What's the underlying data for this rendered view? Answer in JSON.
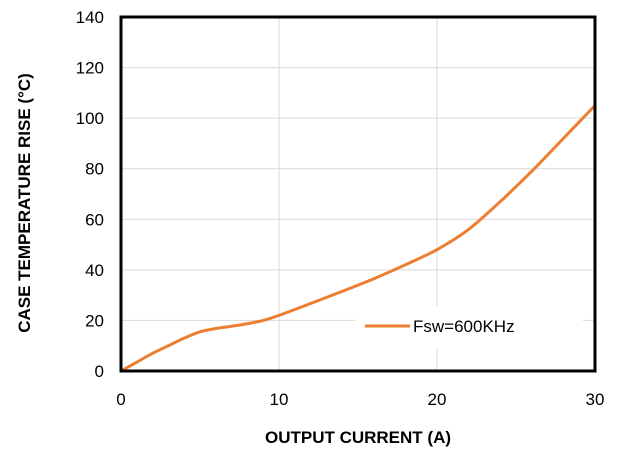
{
  "chart_data": {
    "type": "line",
    "title": "",
    "xlabel": "OUTPUT CURRENT (A)",
    "ylabel": "CASE TEMPERATURE RISE (°C)",
    "xlim": [
      0,
      30
    ],
    "ylim": [
      0,
      140
    ],
    "xticks": [
      0,
      10,
      20,
      30
    ],
    "yticks": [
      0,
      20,
      40,
      60,
      80,
      100,
      120,
      140
    ],
    "grid": true,
    "legend_position": "bottom-right",
    "series": [
      {
        "name": "Fsw=600KHz",
        "color": "#ED7D31",
        "x": [
          0,
          1,
          2,
          3,
          4,
          5,
          6,
          7,
          8,
          9,
          10,
          12,
          14,
          16,
          18,
          20,
          22,
          24,
          26,
          28,
          30
        ],
        "y": [
          0,
          3.5,
          7,
          10,
          13,
          15.5,
          16.8,
          17.7,
          18.7,
          20,
          22,
          26.7,
          31.5,
          36.5,
          42,
          48,
          56,
          67,
          79,
          92,
          105
        ]
      }
    ]
  }
}
